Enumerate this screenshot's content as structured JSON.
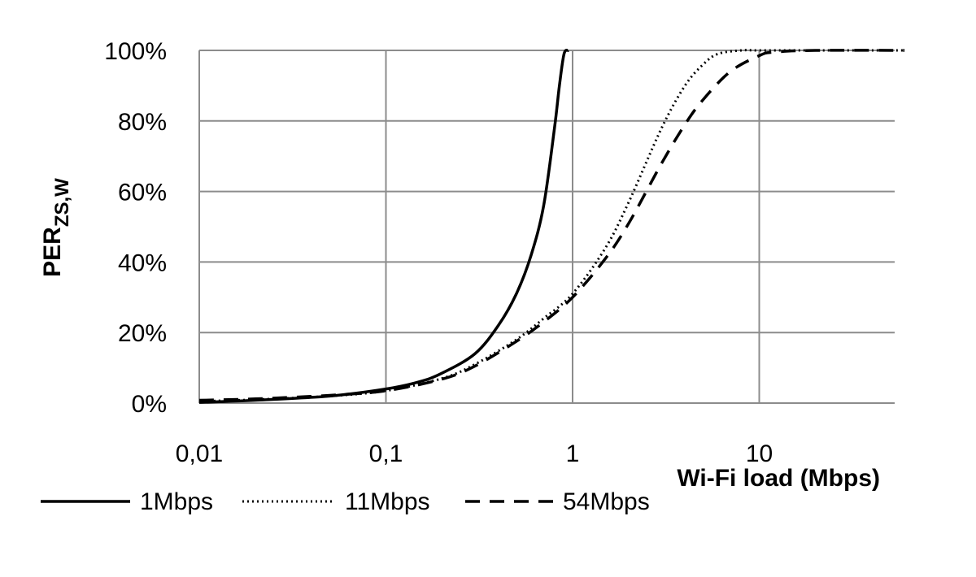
{
  "chart_data": {
    "type": "line",
    "xlabel": "Wi-Fi load (Mbps)",
    "ylabel": {
      "main": "PER",
      "subscript": "ZS,W"
    },
    "x_scale": "log",
    "xlim": [
      0.01,
      60
    ],
    "ylim": [
      0,
      100
    ],
    "x_ticks": [
      0.01,
      0.1,
      1,
      10
    ],
    "x_tick_labels": [
      "0,01",
      "0,1",
      "1",
      "10"
    ],
    "y_ticks": [
      0,
      20,
      40,
      60,
      80,
      100
    ],
    "y_tick_labels": [
      "0%",
      "20%",
      "40%",
      "60%",
      "80%",
      "100%"
    ],
    "grid": true,
    "legend_position": "bottom",
    "series": [
      {
        "name": "1Mbps",
        "dash": "solid",
        "x": [
          0.01,
          0.02,
          0.05,
          0.1,
          0.15,
          0.2,
          0.3,
          0.4,
          0.5,
          0.6,
          0.7,
          0.8,
          0.85,
          0.9,
          0.95
        ],
        "y": [
          0.2,
          0.8,
          2.0,
          4.0,
          6.0,
          8.5,
          14.0,
          22.0,
          31.0,
          42.0,
          56.0,
          78.0,
          90.0,
          99.0,
          100.0
        ]
      },
      {
        "name": "11Mbps",
        "dash": "dotted",
        "x": [
          0.01,
          0.02,
          0.05,
          0.1,
          0.2,
          0.3,
          0.5,
          0.7,
          1.0,
          1.5,
          2.0,
          3.0,
          4.0,
          5.0,
          6.0,
          8.0,
          10.0,
          20.0,
          60.0
        ],
        "y": [
          0.5,
          1.0,
          2.0,
          3.5,
          7.0,
          11.0,
          18.0,
          24.0,
          31.0,
          44.0,
          57.0,
          78.0,
          90.0,
          96.0,
          99.0,
          100.0,
          100.0,
          100.0,
          100.0
        ]
      },
      {
        "name": "54Mbps",
        "dash": "dashed",
        "x": [
          0.01,
          0.02,
          0.05,
          0.1,
          0.2,
          0.3,
          0.5,
          0.7,
          1.0,
          1.5,
          2.0,
          3.0,
          4.0,
          5.0,
          7.0,
          10.0,
          12.0,
          20.0,
          60.0
        ],
        "y": [
          0.8,
          1.2,
          2.2,
          3.5,
          6.8,
          10.5,
          17.5,
          23.0,
          30.0,
          41.0,
          51.0,
          68.0,
          79.0,
          86.0,
          94.0,
          98.5,
          99.5,
          100.0,
          100.0
        ]
      }
    ]
  }
}
